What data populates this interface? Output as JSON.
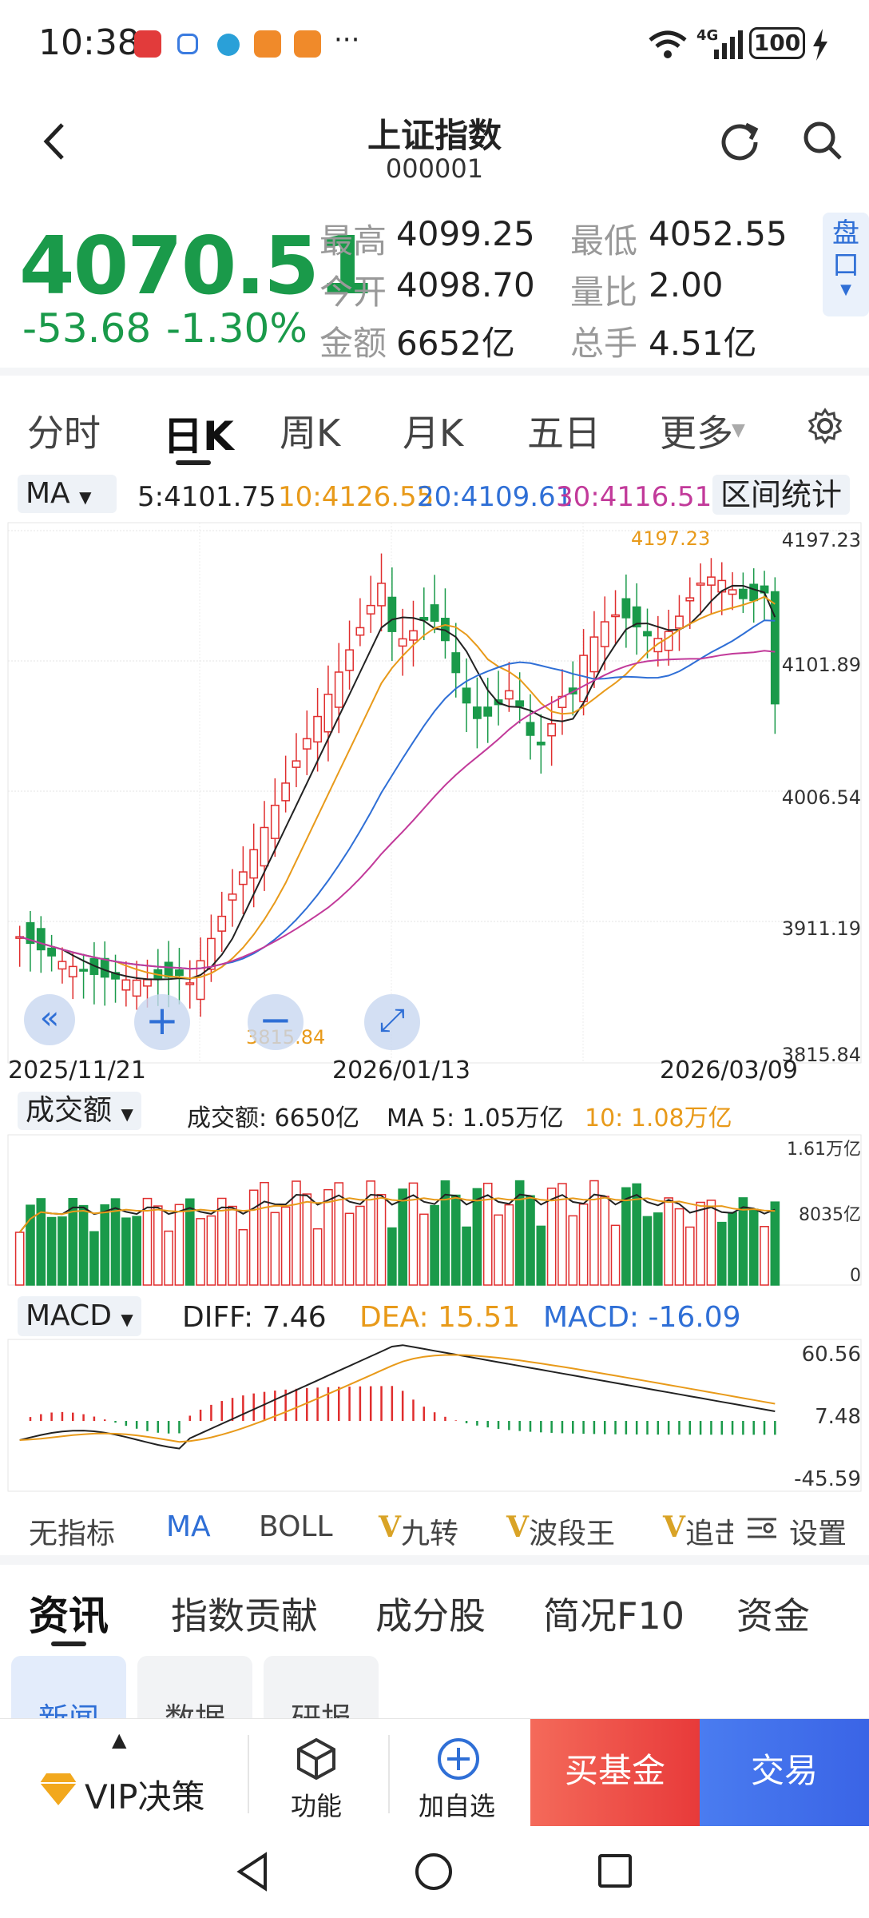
{
  "status": {
    "time": "10:38",
    "dots": "···",
    "signal": "4G",
    "battery": "100"
  },
  "header": {
    "title": "上证指数",
    "code": "000001"
  },
  "quote": {
    "price": "4070.51",
    "change": "-53.68",
    "change_pct": "-1.30%",
    "high_label": "最高",
    "high": "4099.25",
    "low_label": "最低",
    "low": "4052.55",
    "open_label": "今开",
    "open": "4098.70",
    "ratio_label": "量比",
    "ratio": "2.00",
    "amount_label": "金额",
    "amount": "6652亿",
    "hands_label": "总手",
    "hands": "4.51亿",
    "panel_label_1": "盘",
    "panel_label_2": "口"
  },
  "tabs": [
    "分时",
    "日K",
    "周K",
    "月K",
    "五日",
    "更多"
  ],
  "ma_bar": {
    "selector": "MA",
    "ma5": "5:4101.75",
    "ma10": "10:4126.55",
    "ma20": "20:4109.61",
    "ma30": "30:4116.51",
    "stats": "区间统计"
  },
  "kline": {
    "y_labels": [
      "4197.23",
      "4101.89",
      "4006.54",
      "3911.19",
      "3815.84"
    ],
    "x_labels": [
      "2025/11/21",
      "2026/01/13",
      "2026/03/09"
    ],
    "max_label": "4197.23",
    "min_label": "3815.84"
  },
  "vol_bar": {
    "selector": "成交额",
    "amount": "成交额: 6650亿",
    "ma5": "MA 5: 1.05万亿",
    "ma10": "10: 1.08万亿"
  },
  "vol_axis": [
    "1.61万亿",
    "8035亿",
    "0"
  ],
  "macd_bar": {
    "selector": "MACD",
    "diff": "DIFF: 7.46",
    "dea": "DEA: 15.51",
    "macd": "MACD: -16.09"
  },
  "macd_axis": [
    "60.56",
    "7.48",
    "-45.59"
  ],
  "indicators": [
    "无指标",
    "MA",
    "BOLL",
    "九转",
    "波段王",
    "追击"
  ],
  "indicator_prefix": "V",
  "settings": "设置",
  "bottom_tabs": [
    "资讯",
    "指数贡献",
    "成分股",
    "简况F10",
    "资金"
  ],
  "sub_tabs": [
    "新闻",
    "数据",
    "研报"
  ],
  "toolbar": {
    "vip": "VIP决策",
    "func": "功能",
    "add": "加自选",
    "buy": "买基金",
    "trade": "交易"
  },
  "colors": {
    "up": "#e02e2e",
    "down": "#1a9a4a",
    "ma5": "#222222",
    "ma10": "#e89a1a",
    "ma20": "#2f6fd6",
    "ma30": "#c23a9a"
  },
  "chart_data": {
    "type": "candlestick",
    "ylim": [
      3815.84,
      4197.23
    ],
    "last": {
      "ma5": 4101.75,
      "ma10": 4126.55,
      "ma20": 4109.61,
      "ma30": 4116.51,
      "close": 4070.51
    }
  }
}
